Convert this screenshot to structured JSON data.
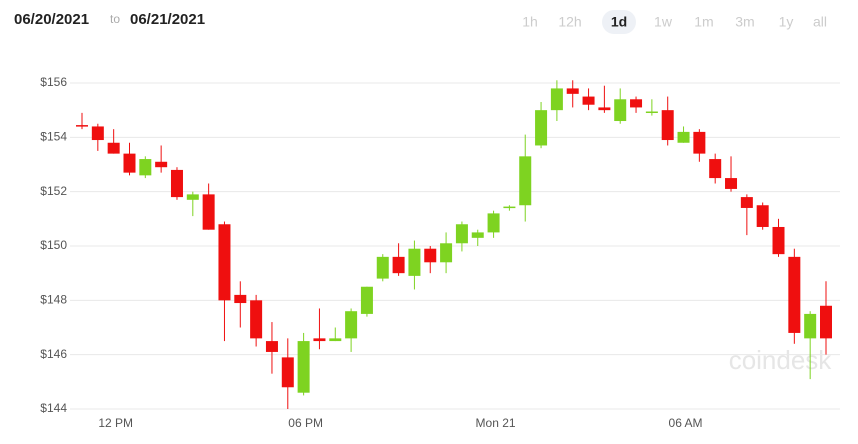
{
  "header": {
    "from": "06/20/2021",
    "to_word": "to",
    "to": "06/21/2021",
    "ranges": [
      "1h",
      "12h",
      "1d",
      "1w",
      "1m",
      "3m",
      "1y",
      "all"
    ],
    "selected": "1d"
  },
  "watermark": "coindesk",
  "chart_data": {
    "type": "candlestick",
    "categories": [
      null,
      null,
      "12 PM",
      null,
      null,
      null,
      null,
      null,
      null,
      null,
      null,
      null,
      null,
      null,
      "06 PM",
      null,
      null,
      null,
      null,
      null,
      null,
      null,
      null,
      null,
      null,
      null,
      "Mon 21",
      null,
      null,
      null,
      null,
      null,
      null,
      null,
      null,
      null,
      null,
      null,
      "06 AM",
      null,
      null,
      null,
      null,
      null,
      null,
      null,
      null,
      null
    ],
    "open": [
      154.45,
      154.4,
      153.8,
      153.4,
      152.6,
      153.1,
      152.8,
      151.7,
      151.9,
      150.8,
      148.2,
      148.0,
      146.5,
      145.9,
      144.6,
      146.6,
      146.5,
      146.6,
      147.5,
      148.8,
      149.6,
      148.9,
      149.9,
      149.4,
      150.1,
      150.3,
      150.5,
      151.4,
      151.5,
      153.7,
      155.0,
      155.8,
      155.5,
      155.1,
      154.6,
      155.4,
      154.9,
      155.0,
      153.8,
      154.2,
      153.2,
      152.5,
      151.8,
      151.5,
      150.7,
      149.6,
      146.6,
      147.8
    ],
    "high": [
      154.9,
      154.5,
      154.3,
      153.8,
      153.3,
      153.7,
      152.9,
      152.0,
      152.3,
      150.9,
      148.7,
      148.2,
      147.2,
      146.6,
      146.8,
      147.7,
      147.0,
      147.7,
      148.5,
      149.7,
      150.1,
      150.2,
      150.0,
      150.5,
      150.9,
      150.6,
      151.3,
      151.5,
      154.1,
      155.3,
      156.1,
      156.1,
      155.8,
      155.9,
      155.8,
      155.5,
      155.4,
      155.5,
      154.4,
      154.3,
      153.4,
      153.3,
      151.9,
      151.6,
      151.0,
      149.9,
      147.6,
      148.7
    ],
    "low": [
      154.3,
      153.5,
      153.4,
      152.6,
      152.5,
      152.7,
      151.7,
      151.1,
      150.6,
      146.5,
      147.0,
      146.3,
      145.3,
      144.0,
      144.5,
      146.2,
      146.5,
      146.1,
      147.4,
      148.7,
      148.9,
      148.4,
      149.0,
      149.0,
      149.8,
      150.0,
      150.3,
      151.3,
      150.9,
      153.6,
      154.6,
      155.1,
      155.0,
      154.9,
      154.5,
      154.9,
      154.8,
      153.7,
      153.8,
      153.1,
      152.3,
      152.0,
      150.4,
      150.6,
      149.6,
      146.4,
      145.1,
      146.0
    ],
    "close": [
      154.4,
      153.9,
      153.4,
      152.7,
      153.2,
      152.9,
      151.8,
      151.9,
      150.6,
      148.0,
      147.9,
      146.6,
      146.1,
      144.8,
      146.5,
      146.5,
      146.6,
      147.6,
      148.5,
      149.6,
      149.0,
      149.9,
      149.4,
      150.1,
      150.8,
      150.5,
      151.2,
      151.45,
      153.3,
      155.0,
      155.8,
      155.6,
      155.2,
      155.0,
      155.4,
      155.1,
      154.95,
      153.9,
      154.2,
      153.4,
      152.5,
      152.1,
      151.4,
      150.7,
      149.7,
      146.8,
      147.5,
      146.6
    ],
    "up_color": "#7ed321",
    "down_color": "#ef0f0f",
    "ylim": [
      144,
      156.5
    ],
    "yticks": [
      {
        "value": 144,
        "label": "$144"
      },
      {
        "value": 146,
        "label": "$146"
      },
      {
        "value": 148,
        "label": "$148"
      },
      {
        "value": 150,
        "label": "$150"
      },
      {
        "value": 152,
        "label": "$152"
      },
      {
        "value": 154,
        "label": "$154"
      },
      {
        "value": 156,
        "label": "$156"
      }
    ],
    "grid": true
  }
}
